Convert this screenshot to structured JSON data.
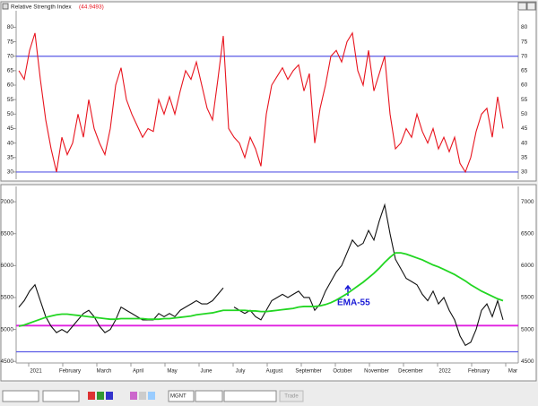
{
  "chart_data": [
    {
      "type": "line",
      "title": "Relative Strength Index",
      "subtitle": "(44.9493)",
      "ylim": [
        27.5,
        85.7
      ],
      "yticks": [
        30,
        35,
        40,
        45,
        50,
        55,
        60,
        65,
        70,
        75,
        80
      ],
      "hlines": [
        {
          "value": 70,
          "color": "#5a5ae6"
        },
        {
          "value": 30,
          "color": "#5a5ae6"
        }
      ],
      "series": [
        {
          "color": "#e8141e",
          "values": [
            65,
            62,
            72,
            78,
            62,
            48,
            38,
            30,
            42,
            36,
            40,
            50,
            42,
            55,
            45,
            40,
            36,
            45,
            60,
            66,
            55,
            50,
            46,
            42,
            45,
            44,
            55,
            50,
            56,
            50,
            58,
            65,
            62,
            68,
            60,
            52,
            48,
            62,
            77,
            45,
            42,
            40,
            35,
            42,
            38,
            32,
            50,
            60,
            63,
            66,
            62,
            65,
            67,
            58,
            64,
            40,
            52,
            60,
            70,
            72,
            68,
            75,
            78,
            65,
            60,
            72,
            58,
            64,
            70,
            50,
            38,
            40,
            45,
            42,
            50,
            44,
            40,
            45,
            38,
            42,
            37,
            42,
            33,
            30,
            35,
            44,
            50,
            52,
            42,
            56,
            45
          ]
        }
      ]
    },
    {
      "type": "line",
      "annotation": "EMA-55",
      "ylim": [
        4475,
        7240
      ],
      "yticks": [
        4500,
        5000,
        5500,
        6000,
        6500,
        7000
      ],
      "month_labels": [
        "2021",
        "February",
        "March",
        "April",
        "May",
        "June",
        "July",
        "August",
        "September",
        "October",
        "November",
        "December",
        "2022",
        "February",
        "Mar"
      ],
      "hlines": [
        {
          "value": 5060,
          "color": "#e020e0"
        },
        {
          "value": 4650,
          "color": "#5a5ae6"
        }
      ],
      "series": [
        {
          "color": "#111111",
          "values": [
            5350,
            5450,
            5600,
            5700,
            5450,
            5200,
            5050,
            4950,
            5000,
            4950,
            5050,
            5150,
            5250,
            5300,
            5200,
            5050,
            4950,
            5000,
            5150,
            5350,
            5300,
            5250,
            5200,
            5150,
            5150,
            5150,
            5250,
            5200,
            5250,
            5200,
            5300,
            5350,
            5400,
            5450,
            5400,
            5400,
            5450,
            5550,
            5650,
            null,
            5350,
            5300,
            5250,
            5300,
            5200,
            5150,
            5300,
            5450,
            5500,
            5550,
            5500,
            5550,
            5600,
            5500,
            5500,
            5300,
            5400,
            5600,
            5750,
            5900,
            6000,
            6200,
            6400,
            6300,
            6350,
            6550,
            6400,
            6700,
            6950,
            6500,
            6100,
            5950,
            5800,
            5750,
            5700,
            5550,
            5450,
            5600,
            5400,
            5500,
            5300,
            5150,
            4900,
            4750,
            4800,
            5000,
            5300,
            5400,
            5200,
            5450,
            5150
          ]
        },
        {
          "color": "#22d622",
          "values": [
            5050,
            5070,
            5100,
            5130,
            5160,
            5190,
            5210,
            5230,
            5240,
            5240,
            5230,
            5220,
            5210,
            5200,
            5190,
            5180,
            5170,
            5160,
            5160,
            5170,
            5170,
            5170,
            5170,
            5170,
            5160,
            5160,
            5160,
            5170,
            5170,
            5180,
            5190,
            5200,
            5210,
            5230,
            5240,
            5250,
            5260,
            5280,
            5300,
            5300,
            5300,
            5300,
            5300,
            5290,
            5290,
            5280,
            5280,
            5290,
            5300,
            5310,
            5320,
            5330,
            5350,
            5360,
            5360,
            5360,
            5370,
            5390,
            5420,
            5460,
            5510,
            5560,
            5620,
            5680,
            5740,
            5810,
            5880,
            5960,
            6050,
            6130,
            6200,
            6200,
            6180,
            6150,
            6120,
            6090,
            6050,
            6010,
            5980,
            5940,
            5900,
            5860,
            5810,
            5760,
            5700,
            5650,
            5600,
            5560,
            5520,
            5480,
            5450
          ]
        }
      ]
    }
  ],
  "toolbar": {
    "symbol": "MGNT",
    "button": "Trade"
  }
}
